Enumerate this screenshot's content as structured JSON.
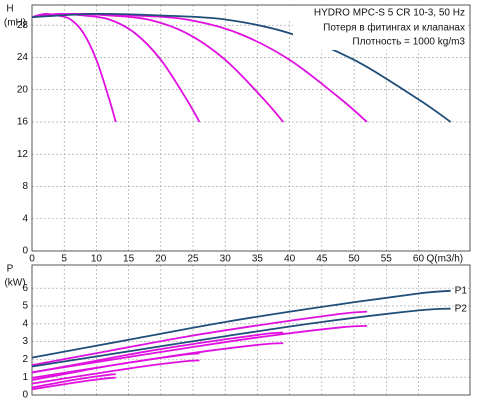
{
  "chart_data": [
    {
      "type": "line",
      "title": "HYDRO MPC-S 5 CR 10-3, 50 Hz",
      "notes": [
        "Потеря в фитингах и клапанах",
        "Плотность = 1000 kg/m3"
      ],
      "ylabel": "H",
      "ylabel_unit": "(mH)",
      "xlabel": "Q(m3/h)",
      "xlim": [
        0,
        68
      ],
      "xticks": [
        0,
        5,
        10,
        15,
        20,
        25,
        30,
        35,
        40,
        45,
        50,
        55,
        60
      ],
      "ylim": [
        0,
        30.5
      ],
      "yticks": [
        0,
        4,
        8,
        12,
        16,
        20,
        24,
        28
      ],
      "grid": true,
      "xtick_labels": true,
      "series": [
        {
          "color": "#e010e0",
          "x": [
            0,
            2,
            4,
            6,
            8,
            10,
            12,
            13
          ],
          "values": [
            29,
            29.4,
            29.2,
            28.7,
            27,
            23.7,
            18.8,
            16
          ]
        },
        {
          "color": "#e010e0",
          "x": [
            0,
            4,
            8,
            12,
            16,
            20,
            24,
            26
          ],
          "values": [
            29,
            29.4,
            29.2,
            28.7,
            27,
            23.7,
            18.8,
            16
          ]
        },
        {
          "color": "#e010e0",
          "x": [
            0,
            6,
            12,
            18,
            24,
            30,
            36,
            39
          ],
          "values": [
            29,
            29.4,
            29.2,
            28.7,
            27,
            23.7,
            18.8,
            16
          ]
        },
        {
          "color": "#e010e0",
          "x": [
            0,
            8,
            16,
            24,
            32,
            40,
            48,
            52
          ],
          "values": [
            29,
            29.4,
            29.2,
            28.7,
            27,
            23.7,
            18.8,
            16
          ]
        },
        {
          "color": "#1f4e79",
          "x": [
            0,
            10,
            20,
            30,
            40,
            50,
            60,
            65
          ],
          "values": [
            29,
            29.4,
            29.2,
            28.7,
            27,
            23.7,
            18.8,
            16
          ]
        }
      ]
    },
    {
      "type": "line",
      "ylabel": "P",
      "ylabel_unit": "(kW)",
      "xlim": [
        0,
        68
      ],
      "xticks": [
        0,
        5,
        10,
        15,
        20,
        25,
        30,
        35,
        40,
        45,
        50,
        55,
        60
      ],
      "ylim": [
        0,
        7.3
      ],
      "yticks": [
        0,
        1,
        2,
        3,
        4,
        5,
        6
      ],
      "grid": true,
      "xtick_labels": false,
      "series": [
        {
          "color": "#e010e0",
          "x": [
            0,
            3,
            6,
            9,
            12,
            13
          ],
          "values": [
            0.42,
            0.62,
            0.82,
            0.99,
            1.14,
            1.17
          ]
        },
        {
          "color": "#e010e0",
          "x": [
            0,
            3,
            6,
            9,
            12,
            13
          ],
          "values": [
            0.32,
            0.49,
            0.66,
            0.82,
            0.95,
            0.97
          ]
        },
        {
          "color": "#e010e0",
          "x": [
            0,
            6,
            12,
            18,
            24,
            26
          ],
          "values": [
            0.84,
            1.24,
            1.64,
            1.98,
            2.28,
            2.34
          ]
        },
        {
          "color": "#e010e0",
          "x": [
            0,
            6,
            12,
            18,
            24,
            26
          ],
          "values": [
            0.64,
            0.98,
            1.32,
            1.64,
            1.9,
            1.94
          ]
        },
        {
          "color": "#e010e0",
          "x": [
            0,
            9,
            18,
            27,
            36,
            39
          ],
          "values": [
            1.26,
            1.86,
            2.46,
            2.97,
            3.42,
            3.51
          ]
        },
        {
          "color": "#e010e0",
          "x": [
            0,
            9,
            18,
            27,
            36,
            39
          ],
          "values": [
            0.96,
            1.47,
            1.98,
            2.46,
            2.85,
            2.91
          ]
        },
        {
          "color": "#e010e0",
          "x": [
            0,
            12,
            24,
            36,
            48,
            52
          ],
          "values": [
            1.68,
            2.48,
            3.28,
            3.96,
            4.56,
            4.68
          ]
        },
        {
          "color": "#e010e0",
          "x": [
            0,
            12,
            24,
            36,
            48,
            52
          ],
          "values": [
            1.28,
            1.96,
            2.64,
            3.28,
            3.8,
            3.88
          ]
        },
        {
          "name": "P1",
          "color": "#1f4e79",
          "x": [
            0,
            15,
            30,
            45,
            60,
            65
          ],
          "values": [
            2.1,
            3.1,
            4.1,
            4.95,
            5.7,
            5.85
          ]
        },
        {
          "name": "P2",
          "color": "#1f4e79",
          "x": [
            0,
            15,
            30,
            45,
            60,
            65
          ],
          "values": [
            1.6,
            2.45,
            3.3,
            4.1,
            4.75,
            4.85
          ]
        }
      ]
    }
  ]
}
